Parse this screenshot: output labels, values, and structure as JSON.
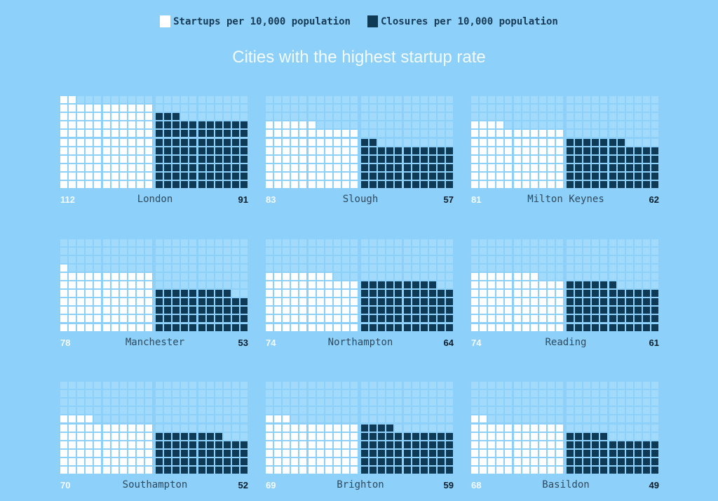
{
  "colors": {
    "background": "#8dd0f9",
    "empty": "#a2dafb",
    "startups": "#ffffff",
    "closures": "#0f3a55"
  },
  "chart_data": {
    "type": "waffle",
    "title": "Cities with the highest startup rate",
    "legend": [
      {
        "label": "Startups per 10,000 population",
        "color": "#ffffff"
      },
      {
        "label": "Closures per 10,000 population",
        "color": "#0f3a55"
      }
    ],
    "legend_position": "top-center",
    "grid": {
      "columns": 11,
      "rows": 11
    },
    "cities": [
      {
        "name": "London",
        "startups": 112,
        "closures": 91
      },
      {
        "name": "Slough",
        "startups": 83,
        "closures": 57
      },
      {
        "name": "Milton Keynes",
        "startups": 81,
        "closures": 62
      },
      {
        "name": "Manchester",
        "startups": 78,
        "closures": 53
      },
      {
        "name": "Northampton",
        "startups": 74,
        "closures": 64
      },
      {
        "name": "Reading",
        "startups": 74,
        "closures": 61
      },
      {
        "name": "Southampton",
        "startups": 70,
        "closures": 52
      },
      {
        "name": "Brighton",
        "startups": 69,
        "closures": 59
      },
      {
        "name": "Basildon",
        "startups": 68,
        "closures": 49
      }
    ]
  }
}
